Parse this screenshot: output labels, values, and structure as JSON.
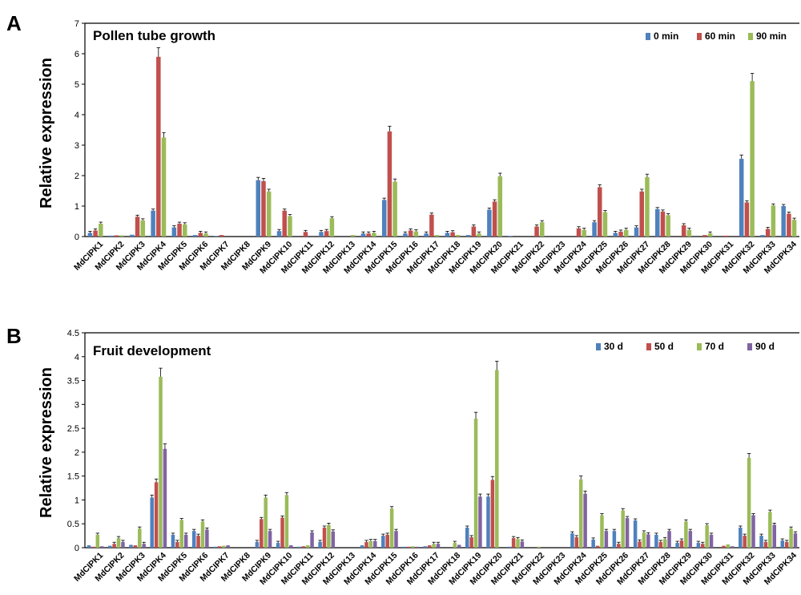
{
  "panels": {
    "A": {
      "letter": "A",
      "title": "Pollen tube growth",
      "ylabel": "Relative expression"
    },
    "B": {
      "letter": "B",
      "title": "Fruit development",
      "ylabel": "Relative expression"
    }
  },
  "chart_data": [
    {
      "type": "bar",
      "title": "Pollen tube growth",
      "ylabel": "Relative expression",
      "xlabel": "",
      "ylim": [
        0,
        7
      ],
      "yticks": [
        "0",
        "1",
        "2",
        "3",
        "4",
        "5",
        "6",
        "7"
      ],
      "legend_position": "top-right",
      "categories": [
        "MdCIPK1",
        "MdCIPK2",
        "MdCIPK3",
        "MdCIPK4",
        "MdCIPK5",
        "MdCIPK6",
        "MdCIPK7",
        "MdCIPK8",
        "MdCIPK9",
        "MdCIPK10",
        "MdCIPK11",
        "MdCIPK12",
        "MdCIPK13",
        "MdCIPK14",
        "MdCIPK15",
        "MdCIPK16",
        "MdCIPK17",
        "MdCIPK18",
        "MdCIPK19",
        "MdCIPK20",
        "MdCIPK21",
        "MdCIPK22",
        "MdCIPK23",
        "MdCIPK24",
        "MdCIPK25",
        "MdCIPK26",
        "MdCIPK27",
        "MdCIPK28",
        "MdCIPK29",
        "MdCIPK30",
        "MdCIPK31",
        "MdCIPK32",
        "MdCIPK33",
        "MdCIPK34"
      ],
      "series": [
        {
          "name": "0 min",
          "color": "#4f81bd",
          "values": [
            0.12,
            0.03,
            0.06,
            0.85,
            0.3,
            0.05,
            0.02,
            0.0,
            1.85,
            0.18,
            0.0,
            0.15,
            0.0,
            0.1,
            1.2,
            0.1,
            0.1,
            0.12,
            0.05,
            0.88,
            0.02,
            0.0,
            0.0,
            0.0,
            0.47,
            0.12,
            0.3,
            0.9,
            0.0,
            0.0,
            0.0,
            2.55,
            0.05,
            1.0
          ]
        },
        {
          "name": "60 min",
          "color": "#c0504d",
          "values": [
            0.2,
            0.04,
            0.65,
            5.9,
            0.42,
            0.12,
            0.05,
            0.0,
            1.82,
            0.85,
            0.15,
            0.18,
            0.0,
            0.1,
            3.45,
            0.2,
            0.72,
            0.14,
            0.33,
            1.15,
            0.0,
            0.33,
            0.0,
            0.27,
            1.62,
            0.16,
            1.48,
            0.82,
            0.37,
            0.05,
            0.03,
            1.12,
            0.25,
            0.75
          ]
        },
        {
          "name": "90 min",
          "color": "#9bbb59",
          "values": [
            0.42,
            0.04,
            0.53,
            3.25,
            0.4,
            0.1,
            0.0,
            0.0,
            1.48,
            0.67,
            0.0,
            0.6,
            0.05,
            0.12,
            1.8,
            0.17,
            0.05,
            0.05,
            0.1,
            1.98,
            0.0,
            0.47,
            0.0,
            0.22,
            0.8,
            0.22,
            1.95,
            0.7,
            0.22,
            0.1,
            0.0,
            5.1,
            1.02,
            0.55
          ]
        }
      ]
    },
    {
      "type": "bar",
      "title": "Fruit development",
      "ylabel": "Relative expression",
      "xlabel": "",
      "ylim": [
        0,
        4.5
      ],
      "yticks": [
        "0",
        "0.5",
        "1",
        "1.5",
        "2",
        "2.5",
        "3",
        "3.5",
        "4",
        "4.5"
      ],
      "legend_position": "top-right",
      "categories": [
        "MdCIPK1",
        "MdCIPK2",
        "MdCIPK3",
        "MdCIPK4",
        "MdCIPK5",
        "MdCIPK6",
        "MdCIPK7",
        "MdCIPK8",
        "MdCIPK9",
        "MdCIPK10",
        "MdCIPK11",
        "MdCIPK12",
        "MdCIPK13",
        "MdCIPK14",
        "MdCIPK15",
        "MdCIPK16",
        "MdCIPK17",
        "MdCIPK18",
        "MdCIPK19",
        "MdCIPK20",
        "MdCIPK21",
        "MdCIPK22",
        "MdCIPK23",
        "MdCIPK24",
        "MdCIPK25",
        "MdCIPK26",
        "MdCIPK27",
        "MdCIPK28",
        "MdCIPK29",
        "MdCIPK30",
        "MdCIPK31",
        "MdCIPK32",
        "MdCIPK33",
        "MdCIPK34"
      ],
      "series": [
        {
          "name": "30 d",
          "color": "#4f81bd",
          "values": [
            0.05,
            0.04,
            0.06,
            1.05,
            0.27,
            0.35,
            0.02,
            0.0,
            0.12,
            0.1,
            0.02,
            0.12,
            0.0,
            0.05,
            0.25,
            0.02,
            0.03,
            0.0,
            0.42,
            1.07,
            0.02,
            0.0,
            0.0,
            0.3,
            0.17,
            0.35,
            0.57,
            0.27,
            0.1,
            0.1,
            0.0,
            0.42,
            0.25,
            0.15
          ]
        },
        {
          "name": "50 d",
          "color": "#c0504d",
          "values": [
            0.02,
            0.08,
            0.05,
            1.37,
            0.12,
            0.25,
            0.03,
            0.0,
            0.6,
            0.63,
            0.03,
            0.42,
            0.0,
            0.12,
            0.27,
            0.02,
            0.05,
            0.0,
            0.22,
            1.42,
            0.2,
            0.0,
            0.0,
            0.22,
            0.04,
            0.08,
            0.13,
            0.12,
            0.15,
            0.08,
            0.04,
            0.25,
            0.12,
            0.12
          ]
        },
        {
          "name": "70 d",
          "color": "#9bbb59",
          "values": [
            0.27,
            0.2,
            0.4,
            3.58,
            0.58,
            0.55,
            0.04,
            0.0,
            1.05,
            1.1,
            0.05,
            0.48,
            0.0,
            0.14,
            0.82,
            0.03,
            0.08,
            0.1,
            2.7,
            3.72,
            0.18,
            0.02,
            0.0,
            1.43,
            0.68,
            0.78,
            0.32,
            0.18,
            0.55,
            0.47,
            0.07,
            1.88,
            0.75,
            0.4
          ]
        },
        {
          "name": "90 d",
          "color": "#8064a2",
          "values": [
            0.03,
            0.12,
            0.08,
            2.07,
            0.27,
            0.38,
            0.05,
            0.0,
            0.35,
            0.05,
            0.32,
            0.34,
            0.0,
            0.14,
            0.35,
            0.02,
            0.08,
            0.06,
            1.07,
            0.0,
            0.13,
            0.0,
            0.0,
            1.13,
            0.35,
            0.62,
            0.28,
            0.35,
            0.35,
            0.27,
            0.03,
            0.68,
            0.48,
            0.3
          ]
        }
      ]
    }
  ]
}
